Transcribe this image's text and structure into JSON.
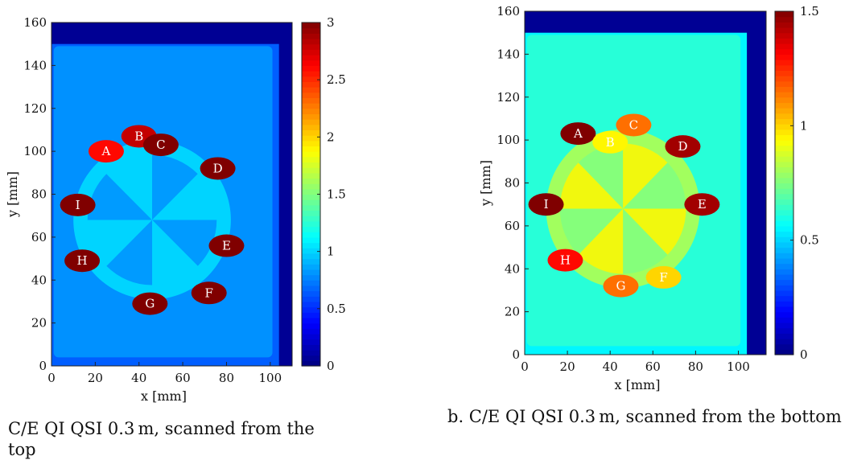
{
  "chart_data": [
    {
      "type": "heatmap",
      "xlabel": "x [mm]",
      "ylabel": "y [mm]",
      "xlim": [
        0,
        110
      ],
      "ylim": [
        0,
        160
      ],
      "x_ticks": [
        0,
        20,
        40,
        60,
        80,
        100
      ],
      "y_ticks": [
        0,
        20,
        40,
        60,
        80,
        100,
        120,
        140,
        160
      ],
      "colorbar": {
        "range": [
          0,
          3
        ],
        "ticks": [
          0,
          0.5,
          1,
          1.5,
          2,
          2.5,
          3
        ],
        "tick_labels": [
          "0",
          "0.5",
          "1",
          "1.5",
          "2",
          "2.5",
          "3"
        ],
        "colormap": "jet"
      },
      "background_value": 0.65,
      "plate_value": 0.8,
      "label_color": "#ffffff",
      "regions": [
        {
          "label": "A",
          "x": 25,
          "y": 100,
          "value": 2.6
        },
        {
          "label": "B",
          "x": 40,
          "y": 107,
          "value": 2.8
        },
        {
          "label": "C",
          "x": 50,
          "y": 103,
          "value": 3.0
        },
        {
          "label": "D",
          "x": 76,
          "y": 92,
          "value": 3.0
        },
        {
          "label": "E",
          "x": 80,
          "y": 56,
          "value": 3.0
        },
        {
          "label": "F",
          "x": 72,
          "y": 34,
          "value": 3.0
        },
        {
          "label": "G",
          "x": 45,
          "y": 29,
          "value": 3.0
        },
        {
          "label": "H",
          "x": 14,
          "y": 49,
          "value": 3.0
        },
        {
          "label": "I",
          "x": 12,
          "y": 75,
          "value": 3.0
        }
      ],
      "caption": "C/E QI QSI 0.3 m, scanned from the top"
    },
    {
      "type": "heatmap",
      "xlabel": "x [mm]",
      "ylabel": "y [mm]",
      "xlim": [
        0,
        113
      ],
      "ylim": [
        0,
        160
      ],
      "x_ticks": [
        0,
        20,
        40,
        60,
        80,
        100
      ],
      "y_ticks": [
        0,
        20,
        40,
        60,
        80,
        100,
        120,
        140,
        160
      ],
      "colorbar": {
        "range": [
          0,
          1.5
        ],
        "ticks": [
          0,
          0.5,
          1,
          1.5
        ],
        "tick_labels": [
          "0",
          "0.5",
          "1",
          "1.5"
        ],
        "colormap": "jet"
      },
      "background_value": 0.55,
      "plate_value": 0.62,
      "label_color": "#ffffff",
      "regions": [
        {
          "label": "A",
          "x": 25,
          "y": 103,
          "value": 1.5
        },
        {
          "label": "B",
          "x": 40,
          "y": 99,
          "value": 0.95
        },
        {
          "label": "C",
          "x": 51,
          "y": 107,
          "value": 1.15
        },
        {
          "label": "D",
          "x": 74,
          "y": 97,
          "value": 1.45
        },
        {
          "label": "E",
          "x": 83,
          "y": 70,
          "value": 1.45
        },
        {
          "label": "F",
          "x": 65,
          "y": 36,
          "value": 1.0
        },
        {
          "label": "G",
          "x": 45,
          "y": 32,
          "value": 1.15
        },
        {
          "label": "H",
          "x": 19,
          "y": 44,
          "value": 1.3
        },
        {
          "label": "I",
          "x": 10,
          "y": 70,
          "value": 1.5
        }
      ],
      "caption": "b.  C/E QI QSI 0.3 m, scanned from the bottom"
    }
  ]
}
